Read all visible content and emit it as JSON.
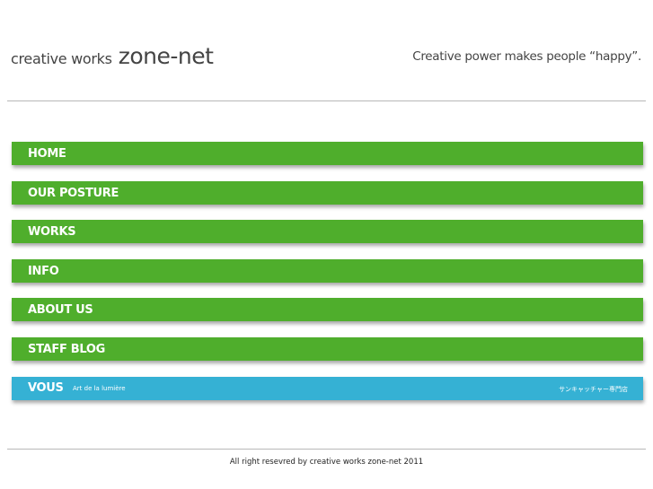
{
  "header": {
    "logo_prefix": "creative works",
    "logo_main": "zone-net",
    "tagline": "Creative power makes people “happy”."
  },
  "nav": {
    "items": [
      {
        "label": "HOME"
      },
      {
        "label": "OUR POSTURE"
      },
      {
        "label": "WORKS"
      },
      {
        "label": "INFO"
      },
      {
        "label": "ABOUT US"
      },
      {
        "label": "STAFF BLOG"
      }
    ],
    "vous": {
      "label": "VOUS",
      "subtitle": "Art de la lumière",
      "right_text": "サンキャッチャー専門店"
    }
  },
  "footer": {
    "copyright": "All right resevred by creative works zone-net 2011"
  },
  "colors": {
    "nav_green": "#4fae2c",
    "vous_blue": "#35b1d4",
    "text": "#444444",
    "rule": "#b8b8b8"
  }
}
